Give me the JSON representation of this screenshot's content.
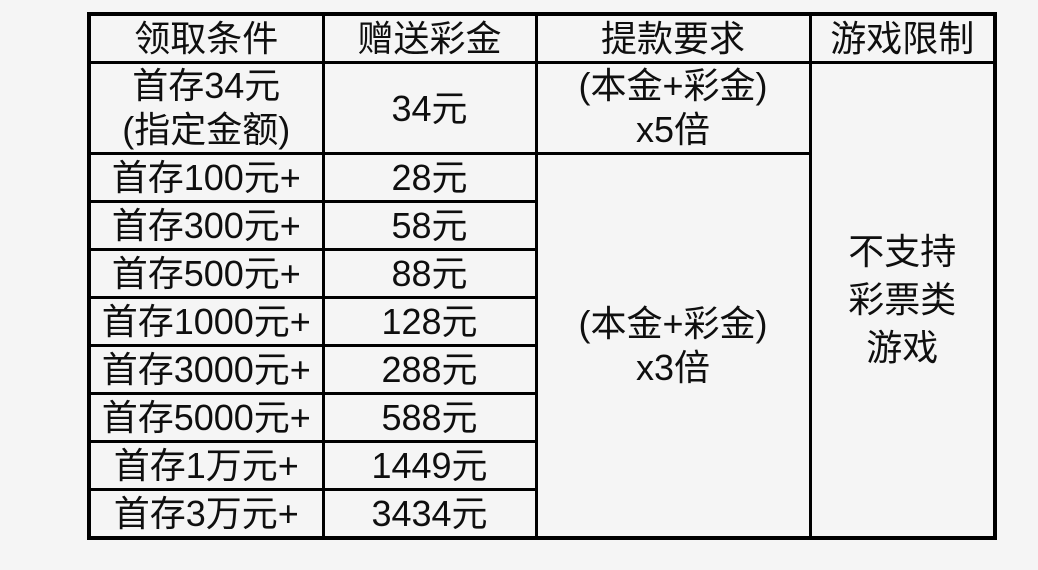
{
  "page": {
    "background_color": "#f5f5f5",
    "table_border_color": "#000000",
    "text_color": "#0f0f0f"
  },
  "table": {
    "headers": [
      "领取条件",
      "赠送彩金",
      "提款要求",
      "游戏限制"
    ],
    "rows": [
      {
        "condition_line1": "首存34元",
        "condition_line2": "(指定金额)",
        "bonus": "34元"
      },
      {
        "condition": "首存100元+",
        "bonus": "28元"
      },
      {
        "condition": "首存300元+",
        "bonus": "58元"
      },
      {
        "condition": "首存500元+",
        "bonus": "88元"
      },
      {
        "condition": "首存1000元+",
        "bonus": "128元"
      },
      {
        "condition": "首存3000元+",
        "bonus": "288元"
      },
      {
        "condition": "首存5000元+",
        "bonus": "588元"
      },
      {
        "condition": "首存1万元+",
        "bonus": "1449元"
      },
      {
        "condition": "首存3万元+",
        "bonus": "3434元"
      }
    ],
    "withdrawal_first": {
      "line1": "(本金+彩金)",
      "line2": "x5倍"
    },
    "withdrawal_rest": {
      "line1": "(本金+彩金)",
      "line2": "x3倍"
    },
    "game_restriction": {
      "line1": "不支持",
      "line2": "彩票类",
      "line3": "游戏"
    }
  }
}
